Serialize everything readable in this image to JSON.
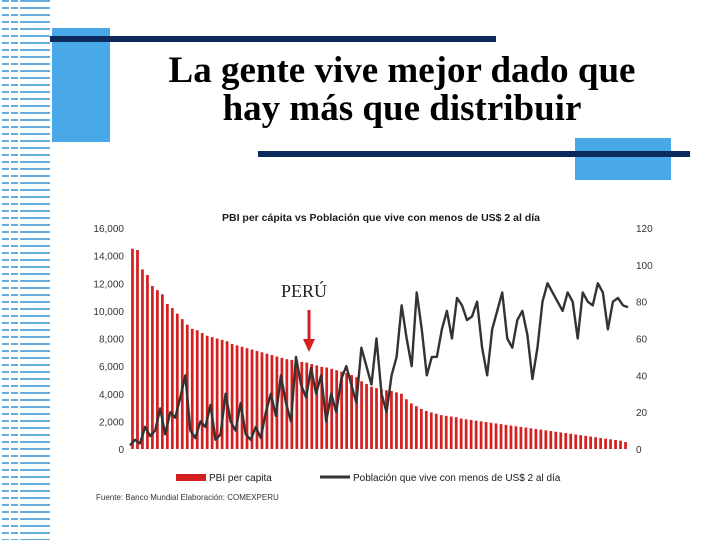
{
  "slide": {
    "title_line1": "La gente vive mejor dado que",
    "title_line2": "hay más que distribuir"
  },
  "chart_data": {
    "type": "bar",
    "title": "PBI per cápita vs Población que vive con menos de US$ 2 al día",
    "annotation": "PERÚ",
    "source": "Fuente: Banco Mundial   Elaboración: COMEXPERU",
    "left_axis": {
      "ylim": [
        0,
        16000
      ],
      "ticks": [
        "0",
        "2,000",
        "4,000",
        "6,000",
        "8,000",
        "10,000",
        "12,000",
        "14,000",
        "16,000"
      ]
    },
    "right_axis": {
      "ylim": [
        0,
        120
      ],
      "ticks": [
        "0",
        "20",
        "40",
        "60",
        "80",
        "100",
        "120"
      ]
    },
    "series": [
      {
        "name": "PBI per capita",
        "axis": "left",
        "color": "#d42020",
        "values": [
          14500,
          14400,
          13000,
          12600,
          11800,
          11500,
          11200,
          10500,
          10200,
          9800,
          9400,
          9000,
          8700,
          8600,
          8400,
          8200,
          8100,
          8000,
          7900,
          7800,
          7600,
          7500,
          7400,
          7300,
          7200,
          7100,
          7000,
          6900,
          6800,
          6700,
          6600,
          6500,
          6450,
          6400,
          6300,
          6250,
          6150,
          6050,
          5950,
          5900,
          5800,
          5700,
          5600,
          5500,
          5350,
          5200,
          4900,
          4700,
          4500,
          4400,
          4300,
          4250,
          4200,
          4100,
          4000,
          3600,
          3300,
          3100,
          2900,
          2750,
          2650,
          2550,
          2450,
          2400,
          2350,
          2300,
          2200,
          2150,
          2100,
          2050,
          2000,
          1950,
          1900,
          1850,
          1800,
          1750,
          1700,
          1650,
          1600,
          1550,
          1500,
          1450,
          1400,
          1350,
          1300,
          1250,
          1200,
          1150,
          1100,
          1050,
          1000,
          950,
          900,
          850,
          800,
          750,
          700,
          650,
          600,
          500
        ]
      },
      {
        "name": "Población que vive con menos de US$ 2 al día",
        "axis": "right",
        "color": "#333333",
        "values": [
          2,
          5,
          3,
          12,
          7,
          10,
          22,
          8,
          20,
          17,
          28,
          40,
          10,
          6,
          15,
          12,
          24,
          5,
          8,
          30,
          15,
          10,
          25,
          8,
          5,
          12,
          6,
          20,
          30,
          18,
          40,
          25,
          15,
          50,
          35,
          28,
          44,
          30,
          40,
          15,
          30,
          20,
          38,
          45,
          35,
          25,
          55,
          45,
          35,
          60,
          30,
          20,
          40,
          50,
          78,
          60,
          45,
          85,
          65,
          40,
          50,
          50,
          65,
          75,
          60,
          82,
          78,
          70,
          72,
          80,
          55,
          40,
          65,
          75,
          85,
          60,
          55,
          70,
          75,
          62,
          38,
          55,
          80,
          90,
          85,
          80,
          75,
          85,
          80,
          60,
          85,
          80,
          78,
          90,
          85,
          65,
          80,
          82,
          78,
          77
        ]
      }
    ],
    "legend_position": "bottom"
  }
}
